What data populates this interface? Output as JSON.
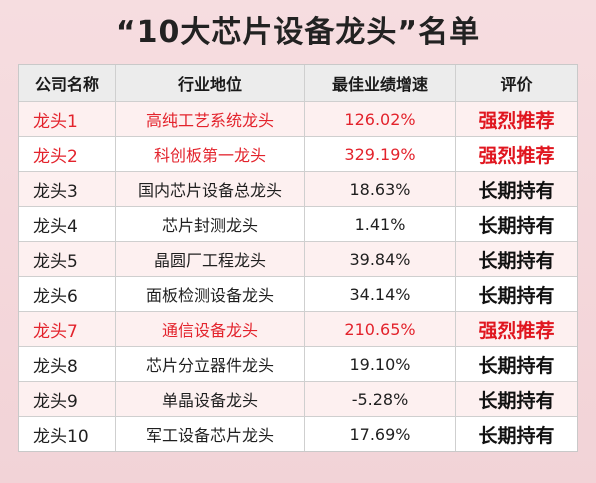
{
  "title": "“10大芯片设备龙头”名单",
  "colors": {
    "highlight": "#e3232c",
    "normal": "#1f1f1f",
    "header_bg": "#ececec",
    "page_bg": "#f4d8dc"
  },
  "table": {
    "headers": [
      "公司名称",
      "行业地位",
      "最佳业绩增速",
      "评价"
    ],
    "rows": [
      {
        "name": "龙头1",
        "role": "高纯工艺系统龙头",
        "growth": "126.02%",
        "rating": "强烈推荐",
        "highlight": true
      },
      {
        "name": "龙头2",
        "role": "科创板第一龙头",
        "growth": "329.19%",
        "rating": "强烈推荐",
        "highlight": true
      },
      {
        "name": "龙头3",
        "role": "国内芯片设备总龙头",
        "growth": "18.63%",
        "rating": "长期持有",
        "highlight": false
      },
      {
        "name": "龙头4",
        "role": "芯片封测龙头",
        "growth": "1.41%",
        "rating": "长期持有",
        "highlight": false
      },
      {
        "name": "龙头5",
        "role": "晶圆厂工程龙头",
        "growth": "39.84%",
        "rating": "长期持有",
        "highlight": false
      },
      {
        "name": "龙头6",
        "role": "面板检测设备龙头",
        "growth": "34.14%",
        "rating": "长期持有",
        "highlight": false
      },
      {
        "name": "龙头7",
        "role": "通信设备龙头",
        "growth": "210.65%",
        "rating": "强烈推荐",
        "highlight": true
      },
      {
        "name": "龙头8",
        "role": "芯片分立器件龙头",
        "growth": "19.10%",
        "rating": "长期持有",
        "highlight": false
      },
      {
        "name": "龙头9",
        "role": "单晶设备龙头",
        "growth": "-5.28%",
        "rating": "长期持有",
        "highlight": false
      },
      {
        "name": "龙头10",
        "role": "军工设备芯片龙头",
        "growth": "17.69%",
        "rating": "长期持有",
        "highlight": false
      }
    ]
  }
}
